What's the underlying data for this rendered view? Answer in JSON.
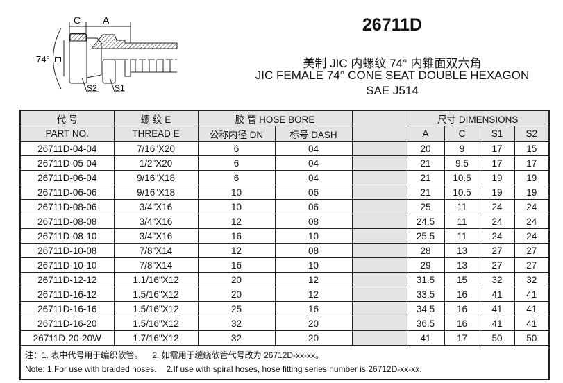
{
  "drawing": {
    "labels": {
      "c": "C",
      "a": "A",
      "angle": "74°",
      "e": "E",
      "s2": "S2",
      "s1": "S1"
    }
  },
  "title": {
    "model": "26711D",
    "cn": "美制 JIC 内螺纹 74° 内锥面双六角",
    "en": "JIC FEMALE 74° CONE SEAT DOUBLE HEXAGON",
    "std": "SAE J514"
  },
  "table": {
    "header": {
      "part_cn": "代 号",
      "part_en": "PART NO.",
      "thread_cn": "螺 纹 E",
      "thread_en": "THREAD E",
      "hose_bore": "胶 管 HOSE BORE",
      "dn": "公称内径 DN",
      "dash": "标号 DASH",
      "dimensions": "尺寸 DIMENSIONS",
      "a": "A",
      "c": "C",
      "s1": "S1",
      "s2": "S2"
    },
    "rows": [
      [
        "26711D-04-04",
        "7/16\"X20",
        "6",
        "04",
        "20",
        "9",
        "17",
        "15"
      ],
      [
        "26711D-05-04",
        "1/2\"X20",
        "6",
        "04",
        "21",
        "9.5",
        "17",
        "17"
      ],
      [
        "26711D-06-04",
        "9/16\"X18",
        "6",
        "04",
        "21",
        "10.5",
        "19",
        "19"
      ],
      [
        "26711D-06-06",
        "9/16\"X18",
        "10",
        "06",
        "21",
        "10.5",
        "19",
        "19"
      ],
      [
        "26711D-08-06",
        "3/4\"X16",
        "10",
        "06",
        "25",
        "11",
        "24",
        "24"
      ],
      [
        "26711D-08-08",
        "3/4\"X16",
        "12",
        "08",
        "24.5",
        "11",
        "24",
        "24"
      ],
      [
        "26711D-08-10",
        "3/4\"X16",
        "16",
        "10",
        "25.5",
        "11",
        "24",
        "24"
      ],
      [
        "26711D-10-08",
        "7/8\"X14",
        "12",
        "08",
        "28",
        "13",
        "27",
        "27"
      ],
      [
        "26711D-10-10",
        "7/8\"X14",
        "16",
        "10",
        "29",
        "13",
        "27",
        "27"
      ],
      [
        "26711D-12-12",
        "1.1/16\"X12",
        "20",
        "12",
        "31.5",
        "15",
        "32",
        "32"
      ],
      [
        "26711D-16-12",
        "1.5/16\"X12",
        "20",
        "12",
        "33.5",
        "16",
        "41",
        "41"
      ],
      [
        "26711D-16-16",
        "1.5/16\"X12",
        "25",
        "16",
        "34.5",
        "16",
        "41",
        "41"
      ],
      [
        "26711D-16-20",
        "1.5/16\"X12",
        "32",
        "20",
        "36.5",
        "16",
        "41",
        "41"
      ],
      [
        "26711D-20-20W",
        "1.7/16\"X12",
        "32",
        "20",
        "41",
        "17",
        "50",
        "50"
      ]
    ],
    "notes": {
      "cn1": "注：1. 表中代号用于编织软管。",
      "cn2": "2. 如需用于缠绕软管代号改为 26712D-xx-xx。",
      "en1": "Note: 1.For use with braided hoses.",
      "en2": "2.If use with spiral hoses, hose fitting series number is 26712D-xx-xx."
    }
  }
}
